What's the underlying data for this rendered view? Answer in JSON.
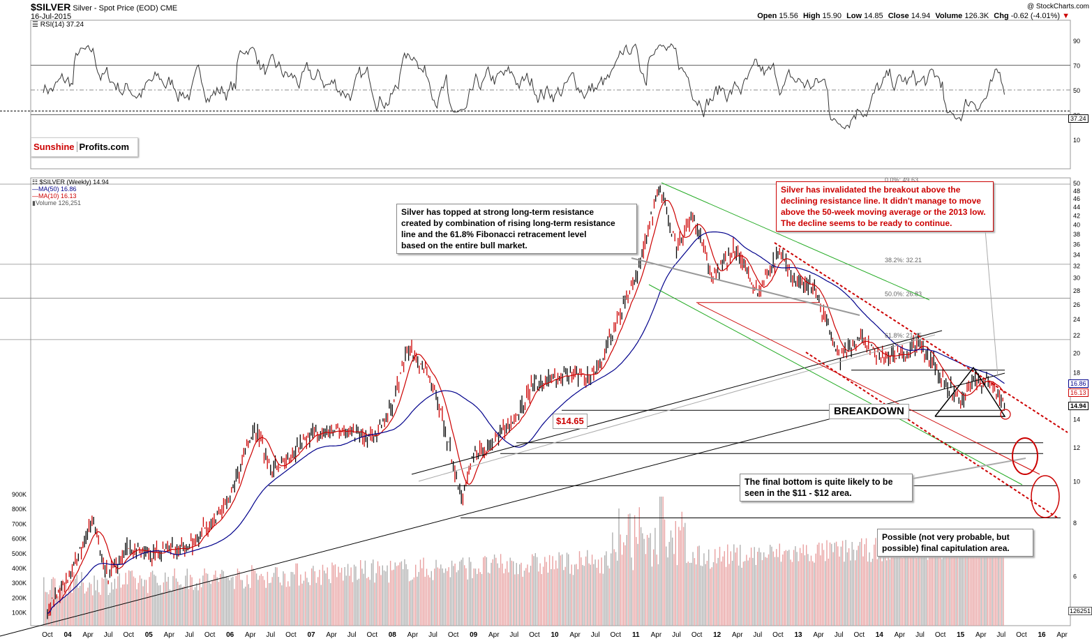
{
  "header": {
    "ticker": "$SILVER",
    "description": "Silver - Spot Price (EOD)",
    "exchange": "CME",
    "date": "16-Jul-2015",
    "copyright": "@ StockCharts.com",
    "ohlc": {
      "open_label": "Open",
      "open": "15.56",
      "high_label": "High",
      "high": "15.90",
      "low_label": "Low",
      "low": "14.85",
      "close_label": "Close",
      "close": "14.94",
      "volume_label": "Volume",
      "volume": "126.3K",
      "chg_label": "Chg",
      "chg": "-0.62 (-4.01%)"
    }
  },
  "rsi_panel": {
    "legend": "RSI(14) 37.24",
    "current_value_tag": "37.24",
    "axis_ticks": [
      "90",
      "70",
      "50",
      "30",
      "10"
    ]
  },
  "logo": {
    "part1": "Sunshine",
    "part2": "Profits.com"
  },
  "price_panel": {
    "legend": {
      "price": "$SILVER (Weekly) 14.94",
      "ma50": "MA(50) 16.86",
      "ma10": "MA(10) 16.13",
      "volume": "Volume 126,251"
    },
    "price_tags": {
      "ma50": "16.86",
      "ma10": "16.13",
      "close": "14.94"
    },
    "axis_ticks": [
      "50",
      "48",
      "46",
      "44",
      "42",
      "40",
      "38",
      "36",
      "34",
      "32",
      "30",
      "28",
      "26",
      "24",
      "22",
      "20",
      "18",
      "16",
      "14",
      "12",
      "10",
      "8",
      "6"
    ],
    "volume_ticks": [
      "900K",
      "800K",
      "700K",
      "600K",
      "500K",
      "400K",
      "300K",
      "200K",
      "100K"
    ],
    "volume_tag": "126251",
    "fib_labels": [
      "0.0%: 49.63",
      "38.2%: 32.21",
      "50.0%: 26.83",
      "61.8%: 21.45"
    ],
    "low_label": "$14.65",
    "breakdown_label": "BREAKDOWN"
  },
  "annotations": {
    "topped": [
      "Silver has topped at strong long-term resistance",
      "created by combination of rising long-term resistance",
      "line and the 61.8% Fibonacci retracement level",
      "based on the entire bull market."
    ],
    "invalidated": [
      "Silver has invalidated the breakout above the",
      "declining resistance line. It didn't manage to move",
      "above the 50-week moving average or the 2013 low.",
      "The decline seems to be ready to continue."
    ],
    "final_bottom": [
      "The final bottom is quite likely to be",
      "seen in the $11 - $12 area."
    ],
    "capitulation": [
      "Possible (not very probable, but",
      "possible) final capitulation area."
    ]
  },
  "x_axis": {
    "labels": [
      "Oct",
      "04",
      "Apr",
      "Jul",
      "Oct",
      "05",
      "Apr",
      "Jul",
      "Oct",
      "06",
      "Apr",
      "Jul",
      "Oct",
      "07",
      "Apr",
      "Jul",
      "Oct",
      "08",
      "Apr",
      "Jul",
      "Oct",
      "09",
      "Apr",
      "Jul",
      "Oct",
      "10",
      "Apr",
      "Jul",
      "Oct",
      "11",
      "Apr",
      "Jul",
      "Oct",
      "12",
      "Apr",
      "Jul",
      "Oct",
      "13",
      "Apr",
      "Jul",
      "Oct",
      "14",
      "Apr",
      "Jul",
      "Oct",
      "15",
      "Apr",
      "Jul",
      "Oct",
      "16",
      "Apr"
    ],
    "bold": [
      "04",
      "05",
      "06",
      "07",
      "08",
      "09",
      "10",
      "11",
      "12",
      "13",
      "14",
      "15",
      "16"
    ]
  },
  "chart_data": {
    "type": "line",
    "title": "$SILVER Silver - Spot Price (EOD) CME",
    "subtitle": "16-Jul-2015",
    "series": [
      {
        "name": "$SILVER (Weekly)",
        "x": [
          2003.75,
          2004.0,
          2004.3,
          2004.5,
          2004.75,
          2005.0,
          2005.5,
          2005.9,
          2006.0,
          2006.3,
          2006.5,
          2006.75,
          2007.0,
          2007.5,
          2007.75,
          2008.0,
          2008.2,
          2008.5,
          2008.75,
          2008.85,
          2009.0,
          2009.25,
          2009.5,
          2009.75,
          2010.0,
          2010.5,
          2010.75,
          2011.0,
          2011.3,
          2011.5,
          2011.7,
          2011.95,
          2012.2,
          2012.5,
          2012.75,
          2012.95,
          2013.2,
          2013.5,
          2013.75,
          2014.0,
          2014.3,
          2014.5,
          2014.8,
          2015.0,
          2015.2,
          2015.4,
          2015.54
        ],
        "values": [
          5.0,
          5.9,
          8.0,
          6.0,
          7.0,
          6.7,
          7.1,
          8.6,
          9.2,
          13.5,
          10.7,
          11.5,
          13.0,
          13.0,
          12.6,
          15.0,
          20.5,
          17.2,
          11.0,
          9.0,
          11.5,
          12.5,
          13.8,
          17.0,
          17.5,
          18.0,
          23.0,
          30.5,
          49.0,
          35.0,
          42.0,
          29.5,
          35.0,
          27.5,
          34.0,
          30.0,
          28.0,
          19.5,
          21.5,
          19.5,
          19.8,
          21.3,
          17.0,
          15.5,
          17.5,
          16.7,
          14.94
        ]
      },
      {
        "name": "MA(50)",
        "values_last": 16.86
      },
      {
        "name": "MA(10)",
        "values_last": 16.13
      },
      {
        "name": "RSI(14)",
        "values_last": 37.24
      }
    ],
    "fibonacci": [
      {
        "label": "0.0%",
        "value": 49.63
      },
      {
        "label": "38.2%",
        "value": 32.21
      },
      {
        "label": "50.0%",
        "value": 26.83
      },
      {
        "label": "61.8%",
        "value": 21.45
      }
    ],
    "ylim": [
      5.5,
      51
    ],
    "yscale": "log",
    "grid": false
  }
}
